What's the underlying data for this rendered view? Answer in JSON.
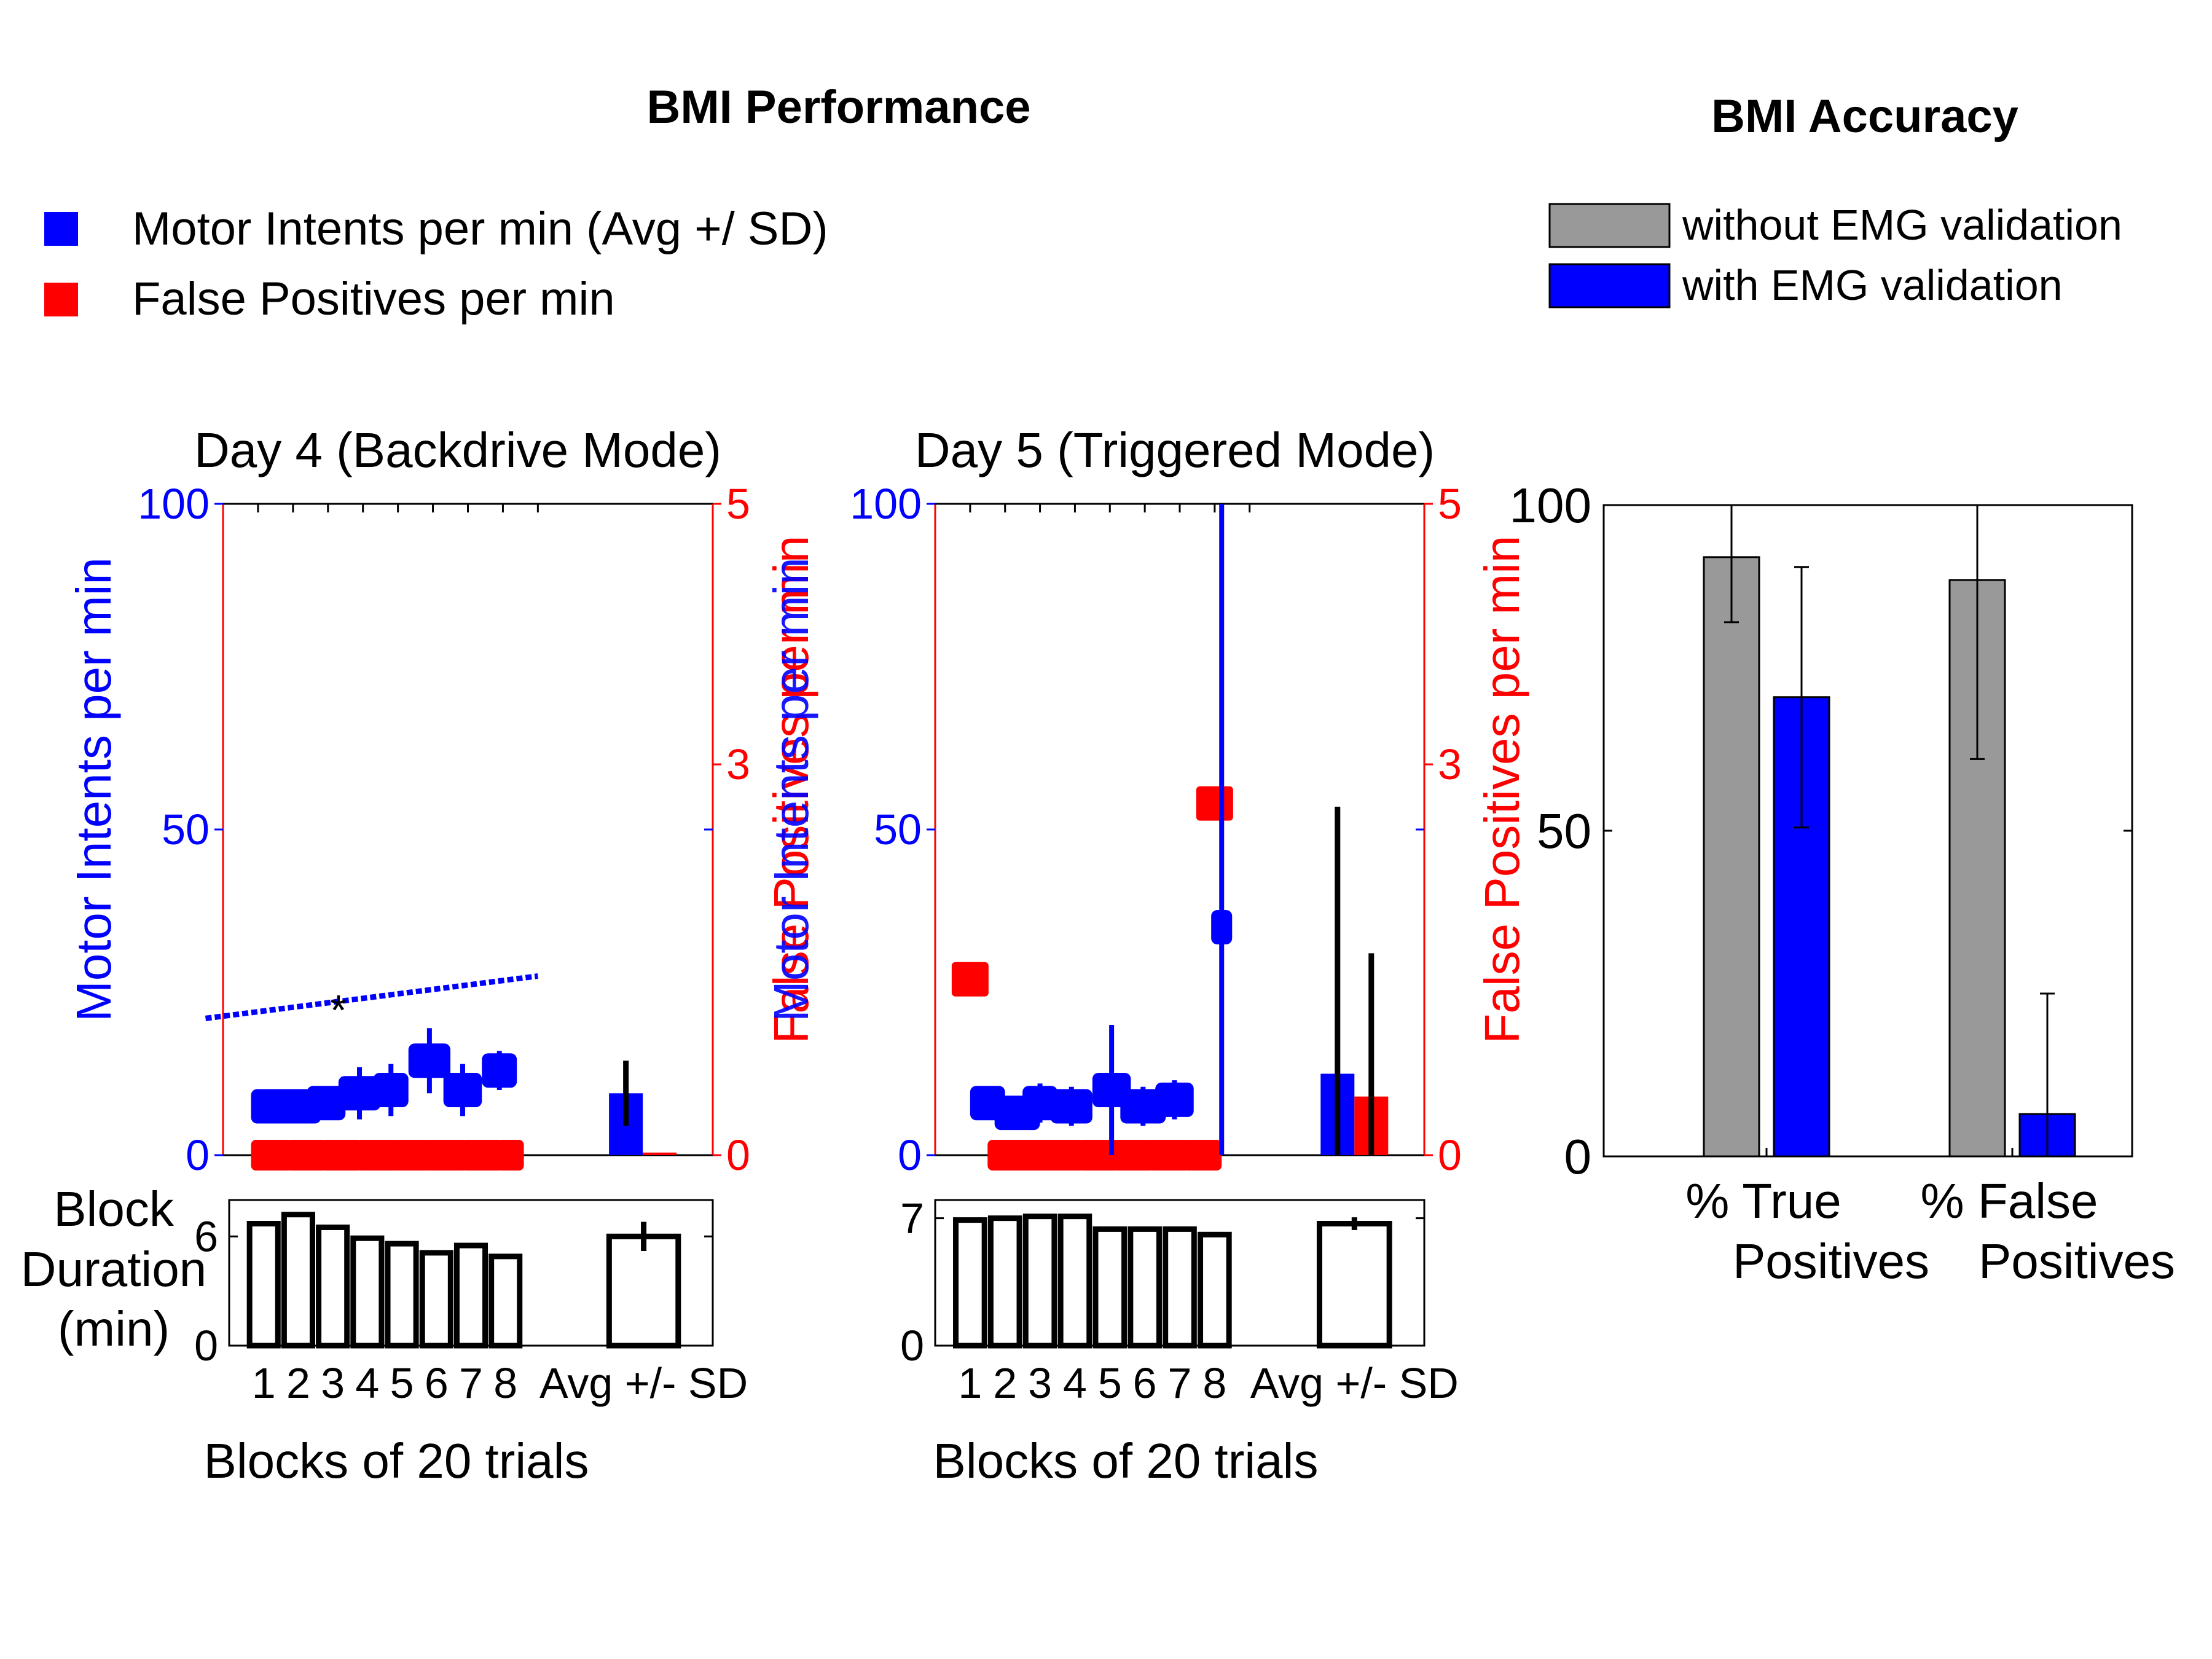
{
  "titles": {
    "performance": "BMI Performance",
    "accuracy": "BMI Accuracy"
  },
  "legend_left": [
    {
      "label": "Motor Intents per min (Avg +/ SD)",
      "color": "#0000ff"
    },
    {
      "label": "False Positives per min",
      "color": "#ff0000"
    }
  ],
  "legend_right": [
    {
      "label": "without EMG validation",
      "color": "#999999"
    },
    {
      "label": "with EMG validation",
      "color": "#0000ff"
    }
  ],
  "colors": {
    "blue": "#0000ff",
    "red": "#ff0000",
    "gray": "#999999",
    "black": "#000000"
  },
  "chart_data": [
    {
      "id": "day4",
      "type": "scatter",
      "title": "Day 4 (Backdrive Mode)",
      "ylabel_left": "Motor Intents per min",
      "ylabel_right": "False Positives per min",
      "ylabel_right_overlap": "Motor Intents per min",
      "xlabel": "Blocks of 20 trials",
      "ylim_left": [
        0,
        100
      ],
      "ylim_right": [
        0,
        5
      ],
      "yticks_left": [
        "0",
        "50",
        "100"
      ],
      "yticks_right": [
        "0",
        "3",
        "5"
      ],
      "x_categories": [
        "1",
        "2",
        "3",
        "4",
        "5",
        "6",
        "7",
        "8",
        "Avg +/- SD"
      ],
      "annotation": "*",
      "motor_intents": [
        {
          "block": 1,
          "x": [
            0.8,
            2.0
          ],
          "y": 7.5,
          "yerr": 2.5
        },
        {
          "block": 2,
          "x": [
            1.5,
            2.8
          ],
          "y": 7.5,
          "yerr": 2.5
        },
        {
          "block": 3,
          "x": [
            2.4,
            3.5
          ],
          "y": 8,
          "yerr": 2.5
        },
        {
          "block": 4,
          "x": [
            3.3,
            4.5
          ],
          "y": 9.5,
          "yerr": 4
        },
        {
          "block": 5,
          "x": [
            4.3,
            5.3
          ],
          "y": 10,
          "yerr": 4
        },
        {
          "block": 6,
          "x": [
            5.3,
            6.5
          ],
          "y": 14.5,
          "yerr": 5
        },
        {
          "block": 7,
          "x": [
            6.3,
            7.4
          ],
          "y": 10,
          "yerr": 4
        },
        {
          "block": 8,
          "x": [
            7.4,
            8.4
          ],
          "y": 13,
          "yerr": 3
        }
      ],
      "false_positives": [
        {
          "x": [
            0.8,
            2.0
          ],
          "y": 0
        },
        {
          "x": [
            1.8,
            3.0
          ],
          "y": 0
        },
        {
          "x": [
            2.8,
            4.0
          ],
          "y": 0
        },
        {
          "x": [
            3.8,
            5.0
          ],
          "y": 0
        },
        {
          "x": [
            4.8,
            6.0
          ],
          "y": 0
        },
        {
          "x": [
            5.8,
            7.0
          ],
          "y": 0
        },
        {
          "x": [
            6.8,
            8.0
          ],
          "y": 0
        },
        {
          "x": [
            7.8,
            8.6
          ],
          "y": 0
        }
      ],
      "trend_line": {
        "x": [
          -0.5,
          9.0
        ],
        "y": [
          21,
          27.5
        ]
      },
      "avg_sd": {
        "motor_intents": {
          "mean": 9.5,
          "sd": 5
        },
        "false_positives": {
          "mean": 0.02,
          "sd": 0
        }
      },
      "block_duration": {
        "ylabel": "Block Duration (min)",
        "ylim": [
          0,
          8
        ],
        "yticks": [
          "0",
          "6"
        ],
        "values": [
          6.7,
          7.2,
          6.5,
          5.9,
          5.6,
          5.1,
          5.5,
          4.9
        ],
        "avg": 6.0,
        "sd": 0.8
      }
    },
    {
      "id": "day5",
      "type": "scatter",
      "title": "Day 5 (Triggered Mode)",
      "ylabel_left": "",
      "ylabel_right": "False Positives per min",
      "xlabel": "Blocks of 20 trials",
      "ylim_left": [
        0,
        100
      ],
      "ylim_right": [
        0,
        5
      ],
      "yticks_left": [
        "0",
        "50",
        "100"
      ],
      "yticks_right": [
        "0",
        "3",
        "5"
      ],
      "x_categories": [
        "1",
        "2",
        "3",
        "4",
        "5",
        "6",
        "7",
        "8",
        "Avg +/- SD"
      ],
      "motor_intents": [
        {
          "block": 1,
          "x": [
            1.0,
            2.0
          ],
          "y": 8,
          "yerr": 2
        },
        {
          "block": 2,
          "x": [
            1.7,
            3.0
          ],
          "y": 6.5,
          "yerr": 2
        },
        {
          "block": 3,
          "x": [
            2.5,
            3.5
          ],
          "y": 8,
          "yerr": 3
        },
        {
          "block": 4,
          "x": [
            3.3,
            4.5
          ],
          "y": 7.5,
          "yerr": 3
        },
        {
          "block": 5,
          "x": [
            4.5,
            5.6
          ],
          "y": 10,
          "yerr": 10
        },
        {
          "block": 6,
          "x": [
            5.3,
            6.6
          ],
          "y": 7.5,
          "yerr": 3
        },
        {
          "block": 7,
          "x": [
            6.3,
            7.4
          ],
          "y": 8.5,
          "yerr": 3
        },
        {
          "block": 8,
          "x": [
            7.9,
            8.5
          ],
          "y": 35,
          "yerr": 65
        }
      ],
      "false_positives_outliers": [
        {
          "x": 1.0,
          "y": 1.35
        },
        {
          "x": 8.0,
          "y": 2.7
        }
      ],
      "false_positives": [
        {
          "x": [
            1.5,
            2.6
          ],
          "y": 0
        },
        {
          "x": [
            2.3,
            3.4
          ],
          "y": 0
        },
        {
          "x": [
            3.1,
            4.3
          ],
          "y": 0
        },
        {
          "x": [
            4.1,
            5.3
          ],
          "y": 0
        },
        {
          "x": [
            5.1,
            6.3
          ],
          "y": 0
        },
        {
          "x": [
            6.1,
            7.3
          ],
          "y": 0
        },
        {
          "x": [
            7.1,
            8.2
          ],
          "y": 0
        }
      ],
      "avg_sd": {
        "motor_intents": {
          "mean": 12.5,
          "sd": 41
        },
        "false_positives": {
          "mean": 0.45,
          "sd": 1.1
        }
      },
      "block_duration": {
        "ylabel": "",
        "ylim": [
          0,
          8
        ],
        "yticks": [
          "0",
          "7"
        ],
        "values": [
          6.9,
          7.0,
          7.1,
          7.1,
          6.4,
          6.4,
          6.4,
          6.1
        ],
        "avg": 6.7,
        "sd": 0.35
      }
    },
    {
      "id": "accuracy",
      "type": "bar",
      "categories": [
        "% True Positives",
        "% False Positives"
      ],
      "category_lines": [
        [
          "% True",
          "Positives"
        ],
        [
          "% False",
          "Positives"
        ]
      ],
      "ylim": [
        0,
        100
      ],
      "yticks": [
        "0",
        "50",
        "100"
      ],
      "series": [
        {
          "name": "without EMG validation",
          "values": [
            92,
            88.5
          ],
          "errors": [
            10,
            27.5
          ]
        },
        {
          "name": "with EMG validation",
          "values": [
            70.5,
            6.5
          ],
          "errors": [
            20,
            18.5
          ]
        }
      ]
    }
  ]
}
